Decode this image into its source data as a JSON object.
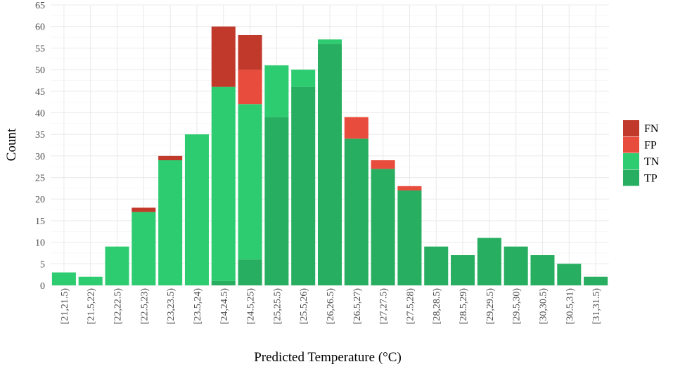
{
  "chart_data": {
    "type": "bar",
    "stacked": true,
    "xlabel": "Predicted Temperature (°C)",
    "ylabel": "Count",
    "ylim": [
      0,
      65
    ],
    "yticks": [
      0,
      5,
      10,
      15,
      20,
      25,
      30,
      35,
      40,
      45,
      50,
      55,
      60,
      65
    ],
    "grid": true,
    "legend_position": "right",
    "categories": [
      "[21,21.5)",
      "[21.5,22)",
      "[22,22.5)",
      "[22.5,23)",
      "[23,23.5)",
      "[23.5,24)",
      "[24,24.5)",
      "[24.5,25)",
      "[25,25.5)",
      "[25.5,26)",
      "[26,26.5)",
      "[26.5,27)",
      "[27,27.5)",
      "[27.5,28)",
      "[28,28.5)",
      "[28.5,29)",
      "[29,29.5)",
      "[29.5,30)",
      "[30,30.5)",
      "[30.5,31)",
      "[31,31.5)"
    ],
    "series": [
      {
        "name": "TP",
        "color": "#27ae60",
        "values": [
          0,
          0,
          0,
          0,
          0,
          0,
          1,
          6,
          39,
          46,
          56,
          34,
          27,
          22,
          9,
          7,
          11,
          9,
          7,
          5,
          2
        ]
      },
      {
        "name": "TN",
        "color": "#2ecc71",
        "values": [
          3,
          2,
          9,
          17,
          29,
          35,
          45,
          36,
          12,
          4,
          1,
          0,
          0,
          0,
          0,
          0,
          0,
          0,
          0,
          0,
          0
        ]
      },
      {
        "name": "FP",
        "color": "#e74c3c",
        "values": [
          0,
          0,
          0,
          0,
          0,
          0,
          0,
          8,
          0,
          0,
          0,
          5,
          2,
          1,
          0,
          0,
          0,
          0,
          0,
          0,
          0
        ]
      },
      {
        "name": "FN",
        "color": "#c0392b",
        "values": [
          0,
          0,
          0,
          1,
          1,
          0,
          14,
          8,
          0,
          0,
          0,
          0,
          0,
          0,
          0,
          0,
          0,
          0,
          0,
          0,
          0
        ]
      }
    ],
    "legend_order": [
      "FN",
      "FP",
      "TN",
      "TP"
    ]
  }
}
